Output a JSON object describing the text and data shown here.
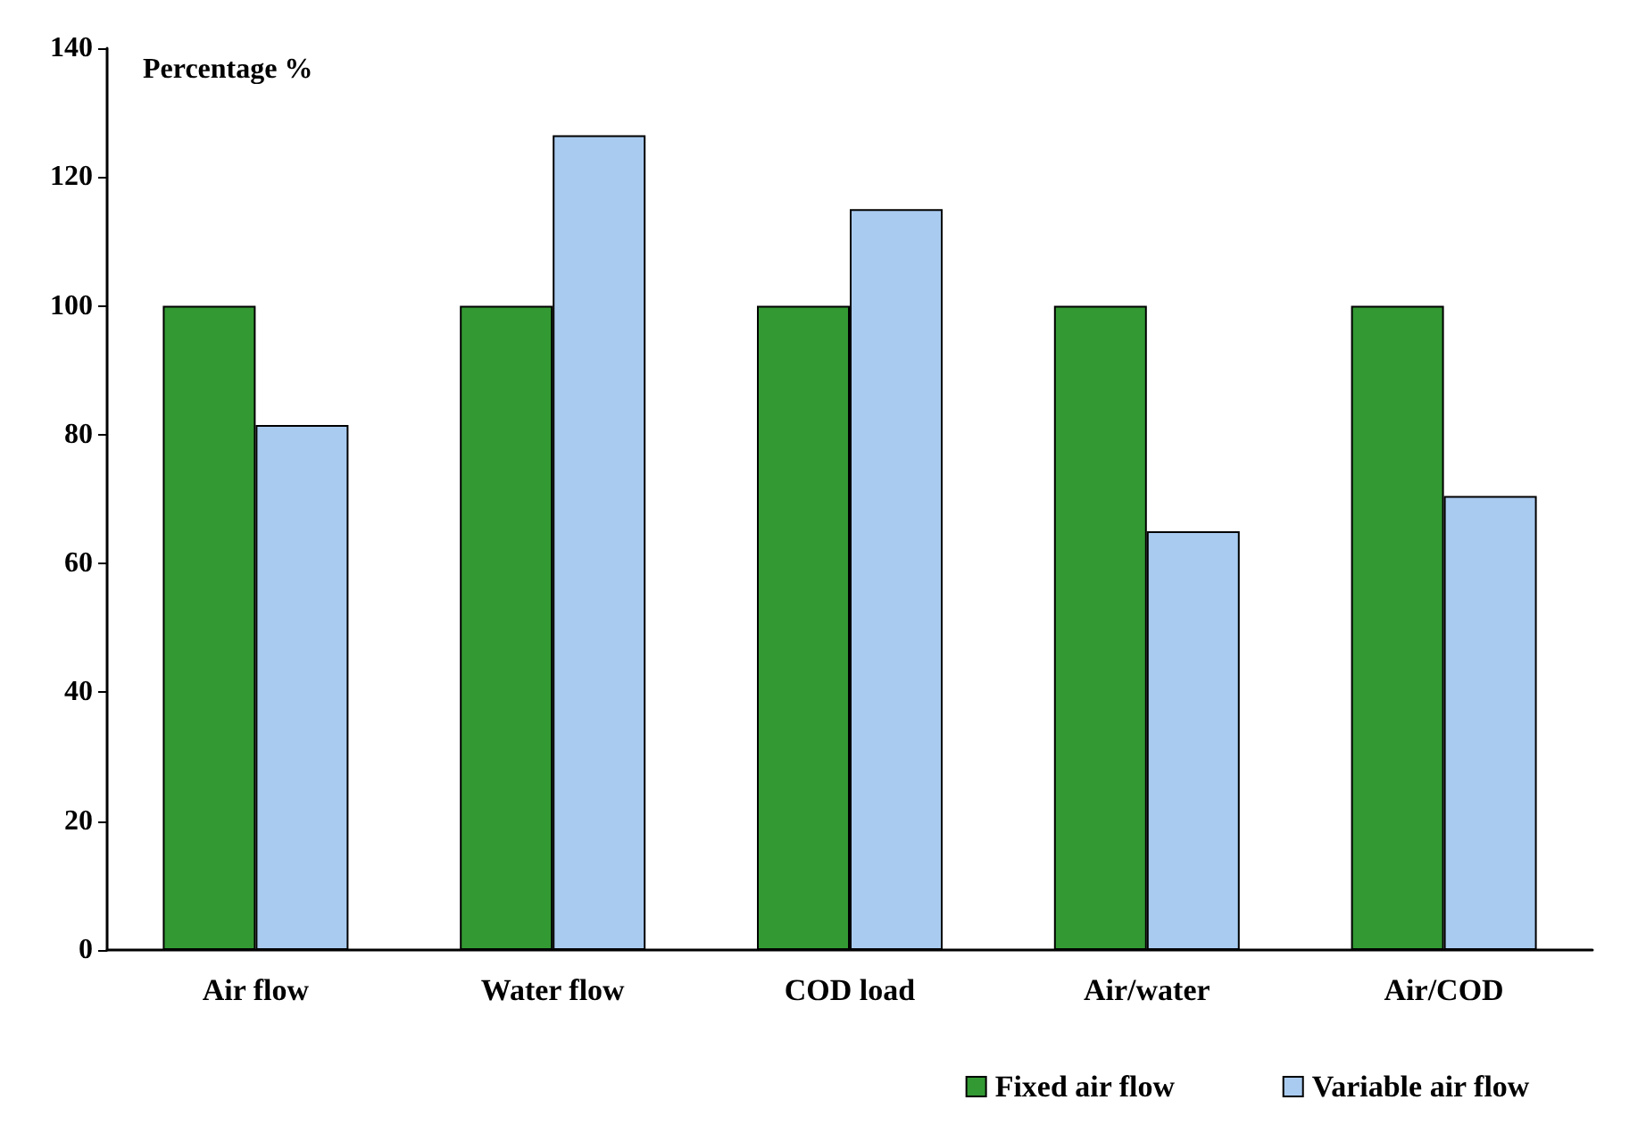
{
  "chart_data": {
    "type": "bar",
    "ylabel": "Percentage %",
    "categories": [
      "Air flow",
      "Water flow",
      "COD load",
      "Air/water",
      "Air/COD"
    ],
    "series": [
      {
        "name": "Fixed air flow",
        "color": "#339933",
        "values": [
          100,
          100,
          100,
          100,
          100
        ]
      },
      {
        "name": "Variable air flow",
        "color": "#a9cbf0",
        "values": [
          81.5,
          126.5,
          115,
          65,
          70.5
        ]
      }
    ],
    "ylim": [
      0,
      140
    ],
    "yticks": [
      0,
      20,
      40,
      60,
      80,
      100,
      120,
      140
    ],
    "grid": false,
    "legend": "bottom right"
  }
}
